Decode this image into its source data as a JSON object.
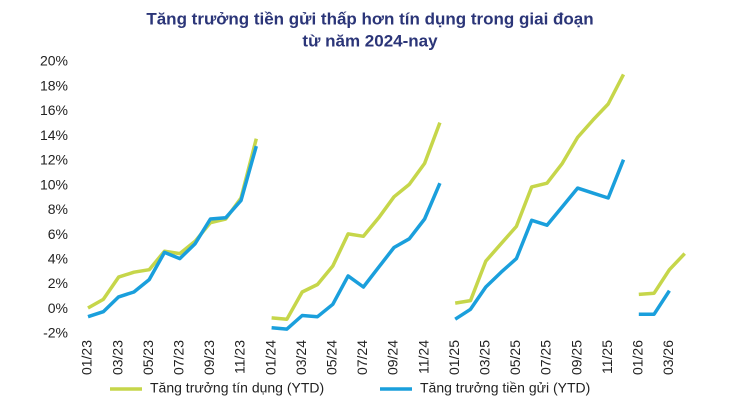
{
  "chart_data": {
    "type": "line",
    "title": [
      "Tăng trưởng tiền gửi thấp hơn tín dụng trong giai đoạn",
      "từ năm 2024-nay"
    ],
    "categories": [
      "01/23",
      null,
      "03/23",
      null,
      "05/23",
      null,
      "07/23",
      null,
      "09/23",
      null,
      "11/23",
      null,
      "01/24",
      null,
      "03/24",
      null,
      "05/24",
      null,
      "07/24",
      null,
      "09/24",
      null,
      "11/24",
      null,
      "01/25",
      null,
      "03/25",
      null,
      "05/25",
      null,
      "07/25",
      null,
      "09/25",
      null,
      "11/25",
      null,
      "01/26",
      null,
      "03/26",
      null
    ],
    "series": [
      {
        "name": "Tăng trưởng tín dụng (YTD)",
        "color": "#c6d64a",
        "values": [
          [
            0.1,
            0.8,
            2.6,
            3.0,
            3.2,
            4.7,
            4.5,
            5.5,
            7.0,
            7.3,
            9.0,
            13.8
          ],
          [
            -0.7,
            -0.8,
            1.4,
            2.0,
            3.5,
            6.1,
            5.9,
            7.4,
            9.1,
            10.1,
            11.8,
            15.1
          ],
          [
            0.5,
            0.7,
            3.9,
            5.3,
            6.7,
            9.9,
            10.2,
            11.8,
            13.9,
            15.3,
            16.6,
            19.0
          ],
          [
            1.2,
            1.3,
            3.2,
            4.5
          ]
        ]
      },
      {
        "name": "Tăng trưởng tiền gửi (YTD)",
        "color": "#1a9fdc",
        "values": [
          [
            -0.6,
            -0.2,
            1.0,
            1.4,
            2.4,
            4.6,
            4.1,
            5.3,
            7.3,
            7.4,
            8.8,
            13.2
          ],
          [
            -1.5,
            -1.6,
            -0.5,
            -0.6,
            0.4,
            2.7,
            1.8,
            3.4,
            5.0,
            5.7,
            7.3,
            10.2
          ],
          [
            -0.8,
            0.0,
            1.8,
            3.0,
            4.1,
            7.2,
            6.8,
            8.3,
            9.8,
            9.4,
            9.0,
            12.1
          ],
          [
            -0.4,
            -0.4,
            1.5
          ]
        ]
      }
    ],
    "ylim": [
      -2,
      20
    ],
    "yticks": [
      {
        "value": -2,
        "label": "-2%"
      },
      {
        "value": 0,
        "label": "0%"
      },
      {
        "value": 2,
        "label": "2%"
      },
      {
        "value": 4,
        "label": "4%"
      },
      {
        "value": 6,
        "label": "6%"
      },
      {
        "value": 8,
        "label": "8%"
      },
      {
        "value": 10,
        "label": "10%"
      },
      {
        "value": 12,
        "label": "12%"
      },
      {
        "value": 14,
        "label": "14%"
      },
      {
        "value": 16,
        "label": "16%"
      },
      {
        "value": 18,
        "label": "18%"
      },
      {
        "value": 20,
        "label": "20%"
      }
    ],
    "legend": "bottom"
  }
}
